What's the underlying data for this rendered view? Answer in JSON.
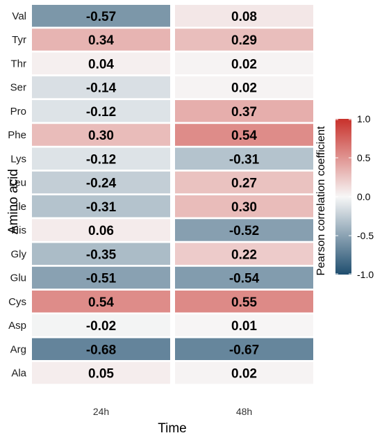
{
  "chart_data": {
    "type": "heatmap",
    "title": "",
    "xlabel": "Time",
    "ylabel": "Amino acid",
    "x": [
      "24h",
      "48h"
    ],
    "y": [
      "Val",
      "Tyr",
      "Thr",
      "Ser",
      "Pro",
      "Phe",
      "Lys",
      "Leu",
      "Ile",
      "His",
      "Gly",
      "Glu",
      "Cys",
      "Asp",
      "Arg",
      "Ala"
    ],
    "values": [
      [
        "-0.57",
        "0.08"
      ],
      [
        "0.34",
        "0.29"
      ],
      [
        "0.04",
        "0.02"
      ],
      [
        "-0.14",
        "0.02"
      ],
      [
        "-0.12",
        "0.37"
      ],
      [
        "0.30",
        "0.54"
      ],
      [
        "-0.12",
        "-0.31"
      ],
      [
        "-0.24",
        "0.27"
      ],
      [
        "-0.31",
        "0.30"
      ],
      [
        "0.06",
        "-0.52"
      ],
      [
        "-0.35",
        "0.22"
      ],
      [
        "-0.51",
        "-0.54"
      ],
      [
        "0.54",
        "0.55"
      ],
      [
        "-0.02",
        "0.01"
      ],
      [
        "-0.68",
        "-0.67"
      ],
      [
        "0.05",
        "0.02"
      ]
    ],
    "legend": {
      "title": "Pearson correlation coefficient",
      "range": [
        -1.0,
        1.0
      ],
      "ticks": [
        "1.0",
        "0.5",
        "0.0",
        "-0.5",
        "-1.0"
      ],
      "position": "right"
    },
    "colors": {
      "low": "#1f4e6f",
      "mid": "#f7f7f7",
      "high": "#c8312b"
    },
    "grid": false
  }
}
